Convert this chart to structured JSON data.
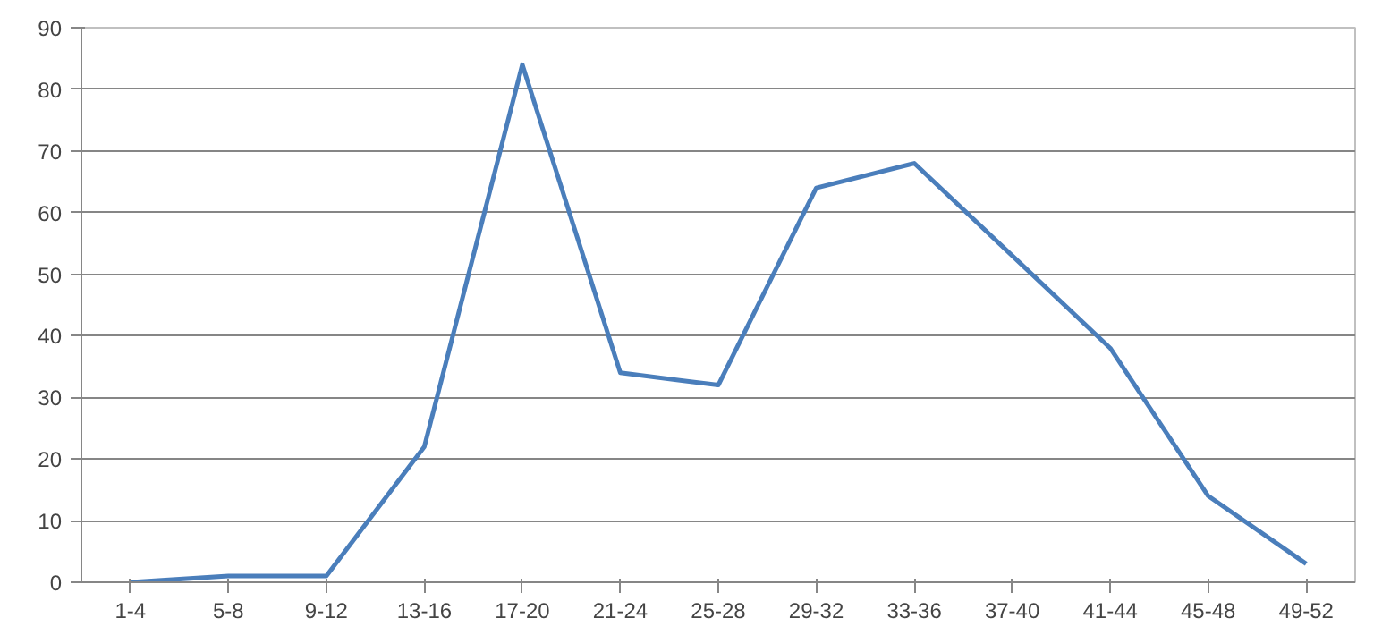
{
  "chart_data": {
    "type": "line",
    "categories": [
      "1-4",
      "5-8",
      "9-12",
      "13-16",
      "17-20",
      "21-24",
      "25-28",
      "29-32",
      "33-36",
      "37-40",
      "41-44",
      "45-48",
      "49-52"
    ],
    "series": [
      {
        "color": "#4a7ebb",
        "values": [
          0,
          1,
          1,
          22,
          84,
          34,
          32,
          64,
          68,
          53,
          38,
          14,
          3
        ]
      }
    ],
    "ylim": [
      0,
      90
    ],
    "yticks": [
      0,
      10,
      20,
      30,
      40,
      50,
      60,
      70,
      80,
      90
    ],
    "grid": "y",
    "marker": "none",
    "line_style": "solid"
  }
}
